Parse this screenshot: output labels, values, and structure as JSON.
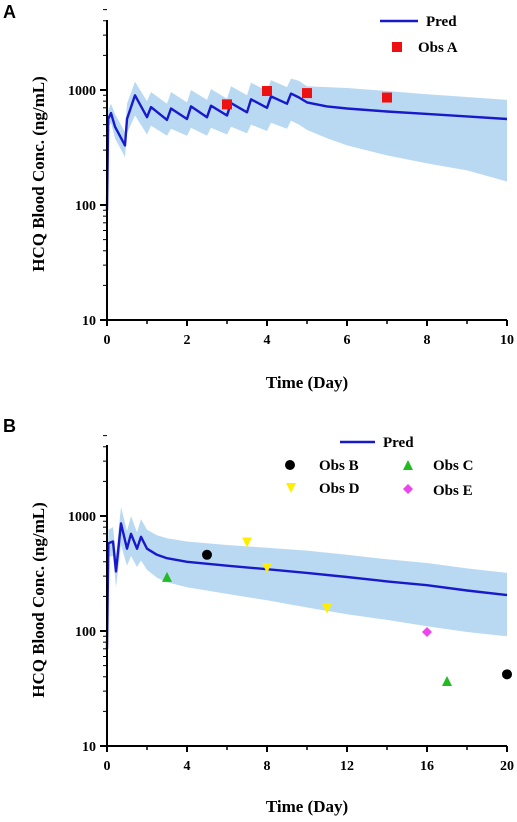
{
  "chart_data": [
    {
      "panel": "A",
      "type": "line",
      "xlabel": "Time (Day)",
      "ylabel": "HCQ Blood Conc. (ng/mL)",
      "yscale": "log",
      "xlim": [
        0,
        10
      ],
      "ylim": [
        10,
        5000
      ],
      "xticks": [
        "0",
        "2",
        "4",
        "6",
        "8",
        "10"
      ],
      "yticks": [
        "10",
        "100",
        "1000"
      ],
      "colors": {
        "pred": "#1919cc",
        "band": "#b9d9f2",
        "obsA": "#ee1111"
      },
      "series": [
        {
          "name": "Pred",
          "x": [
            0,
            0.03,
            0.1,
            0.2,
            0.45,
            0.5,
            0.7,
            1.0,
            1.1,
            1.5,
            1.6,
            2.0,
            2.1,
            2.5,
            2.6,
            3.0,
            3.1,
            3.5,
            3.6,
            4.0,
            4.1,
            4.5,
            4.6,
            4.8,
            5.0,
            5.5,
            6.0,
            7.0,
            8.0,
            9.0,
            10.0
          ],
          "y": [
            90,
            560,
            630,
            480,
            330,
            560,
            900,
            580,
            710,
            550,
            690,
            560,
            720,
            580,
            730,
            600,
            770,
            640,
            830,
            700,
            880,
            760,
            930,
            860,
            780,
            720,
            690,
            650,
            620,
            590,
            560
          ],
          "band_lower": [
            90,
            480,
            520,
            380,
            260,
            420,
            600,
            410,
            490,
            400,
            460,
            400,
            470,
            400,
            470,
            410,
            480,
            420,
            500,
            440,
            520,
            460,
            540,
            500,
            450,
            380,
            330,
            270,
            230,
            200,
            160
          ],
          "band_upper": [
            90,
            660,
            760,
            620,
            430,
            760,
            1180,
            800,
            960,
            760,
            960,
            780,
            1000,
            820,
            1020,
            840,
            1080,
            900,
            1160,
            980,
            1220,
            1060,
            1260,
            1200,
            1080,
            1060,
            1040,
            980,
            920,
            870,
            820
          ]
        },
        {
          "name": "Obs A",
          "x": [
            3,
            4,
            5,
            7
          ],
          "y": [
            750,
            980,
            940,
            860
          ]
        }
      ],
      "legend": {
        "placement": "top-right",
        "entries": [
          "Pred",
          "Obs A"
        ]
      }
    },
    {
      "panel": "B",
      "type": "line",
      "xlabel": "Time (Day)",
      "ylabel": "HCQ Blood Conc. (ng/mL)",
      "yscale": "log",
      "xlim": [
        0,
        20
      ],
      "ylim": [
        10,
        5000
      ],
      "xticks": [
        "0",
        "4",
        "8",
        "12",
        "16",
        "20"
      ],
      "yticks": [
        "10",
        "100",
        "1000"
      ],
      "colors": {
        "pred": "#1919cc",
        "band": "#b9d9f2",
        "obsB": "#000000",
        "obsC": "#22bb22",
        "obsD": "#ffee00",
        "obsE": "#ee44ee"
      },
      "series": [
        {
          "name": "Pred",
          "x": [
            0,
            0.07,
            0.3,
            0.45,
            0.7,
            1.0,
            1.2,
            1.5,
            1.7,
            2.0,
            2.5,
            3.0,
            4.0,
            6.0,
            8.0,
            10.0,
            12.0,
            14.0,
            16.0,
            18.0,
            20.0
          ],
          "y": [
            70,
            580,
            600,
            330,
            860,
            520,
            700,
            520,
            660,
            520,
            460,
            430,
            400,
            370,
            345,
            320,
            295,
            270,
            250,
            225,
            205
          ],
          "band_lower": [
            70,
            440,
            450,
            240,
            560,
            370,
            450,
            360,
            410,
            340,
            290,
            265,
            240,
            210,
            185,
            160,
            140,
            125,
            110,
            98,
            90
          ],
          "band_upper": [
            70,
            760,
            800,
            450,
            1200,
            740,
            1000,
            720,
            940,
            760,
            680,
            640,
            600,
            560,
            530,
            500,
            460,
            420,
            390,
            350,
            320
          ]
        },
        {
          "name": "Obs B",
          "x": [
            5,
            20
          ],
          "y": [
            460,
            42
          ]
        },
        {
          "name": "Obs C",
          "x": [
            3,
            17
          ],
          "y": [
            290,
            36
          ]
        },
        {
          "name": "Obs D",
          "x": [
            7,
            8,
            11
          ],
          "y": [
            600,
            360,
            160
          ]
        },
        {
          "name": "Obs E",
          "x": [
            16
          ],
          "y": [
            98
          ]
        }
      ],
      "legend": {
        "placement": "top-right",
        "entries": [
          "Pred",
          "Obs B",
          "Obs C",
          "Obs D",
          "Obs E"
        ]
      }
    }
  ]
}
